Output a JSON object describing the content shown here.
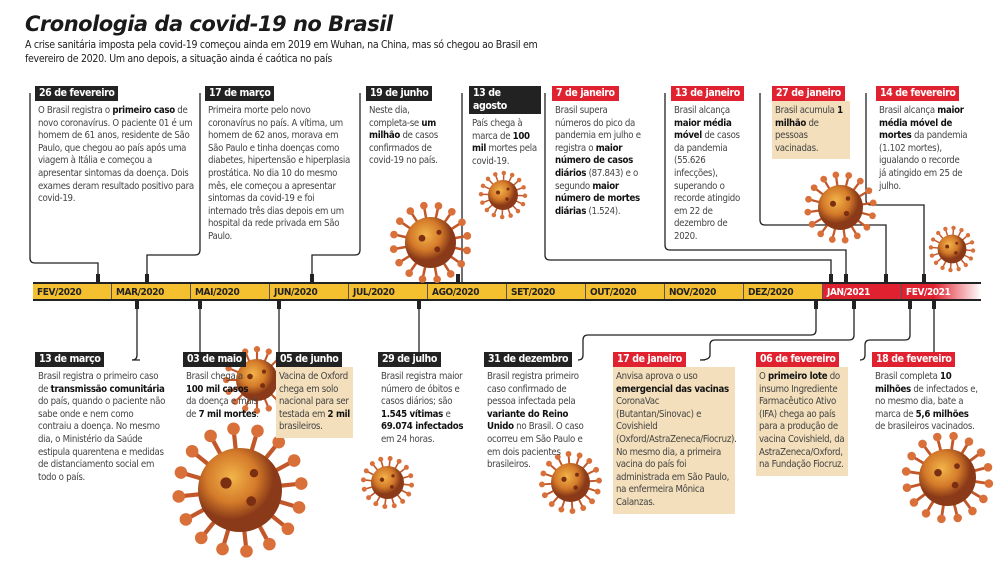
{
  "title": "Cronologia da covid-19 no Brasil",
  "subtitle": "A crise sanitária imposta pela covid-19 começou ainda em 2019 em Wuhan, na China, mas só chegou ao Brasil em fevereiro de 2020. Um ano depois, a situação ainda é caótica no país",
  "colors": {
    "timeline_2020": "#f5c02f",
    "timeline_2021": "#e0212f",
    "label_dark": "#222222",
    "highlight_box": "#f3dfbb"
  },
  "months": [
    "FEV/2020",
    "MAR/2020",
    "MAI/2020",
    "JUN/2020",
    "JUL/2020",
    "AGO/2020",
    "SET/2020",
    "OUT/2020",
    "NOV/2020",
    "DEZ/2020",
    "JAN/2021",
    "FEV/2021"
  ],
  "events_top": [
    {
      "date": "26 de fevereiro",
      "style": "dark",
      "segments": [
        [
          "O Brasil registra o ",
          0
        ],
        [
          "primeiro caso",
          1
        ],
        [
          " de novo coronavírus. O paciente 01 é um homem de 61 anos, residente de São Paulo, que chegou ao país após uma viagem à Itália e começou a apresentar sintomas da doença. Dois exames deram resultado positivo para covid-19.",
          0
        ]
      ]
    },
    {
      "date": "17 de março",
      "style": "dark",
      "segments": [
        [
          "Primeira morte pelo novo coronavírus no país. A vítima, um homem de 62 anos, morava em São Paulo e tinha doenças como diabetes, hipertensão e hiperplasia prostática. No dia 10 do mesmo mês, ele começou a apresentar sintomas da covid-19 e foi internado três dias depois em um hospital da rede privada em São Paulo.",
          0
        ]
      ]
    },
    {
      "date": "19 de junho",
      "style": "dark",
      "segments": [
        [
          "Neste dia, completa-se ",
          0
        ],
        [
          "um milhão",
          1
        ],
        [
          " de casos confirmados de covid-19 no país.",
          0
        ]
      ]
    },
    {
      "date": "13 de agosto",
      "style": "dark",
      "segments": [
        [
          "País chega à marca de ",
          0
        ],
        [
          "100 mil",
          1
        ],
        [
          " mortes pela covid-19.",
          0
        ]
      ]
    },
    {
      "date": "7 de janeiro",
      "style": "red",
      "segments": [
        [
          "Brasil supera números do pico da pandemia em julho e registra o ",
          0
        ],
        [
          "maior número de casos diários",
          1
        ],
        [
          " (87.843) e o segundo ",
          0
        ],
        [
          "maior número de mortes diárias",
          1
        ],
        [
          " (1.524).",
          0
        ]
      ]
    },
    {
      "date": "13 de janeiro",
      "style": "red",
      "segments": [
        [
          "Brasil alcança ",
          0
        ],
        [
          "maior média móvel",
          1
        ],
        [
          " de casos da pandemia (55.626 infecções), superando o recorde atingido em 22 de dezembro de 2020.",
          0
        ]
      ]
    },
    {
      "date": "27 de janeiro",
      "style": "red beige",
      "segments": [
        [
          "Brasil acumula ",
          0
        ],
        [
          "1 milhão",
          1
        ],
        [
          " de pessoas vacinadas.",
          0
        ]
      ]
    },
    {
      "date": "14 de fevereiro",
      "style": "red",
      "segments": [
        [
          "Brasil alcança ",
          0
        ],
        [
          "maior média móvel de mortes",
          1
        ],
        [
          " da pandemia (1.102 mortes), igualando o recorde já atingido em 25 de julho.",
          0
        ]
      ]
    }
  ],
  "events_bottom": [
    {
      "date": "13 de março",
      "style": "dark",
      "segments": [
        [
          "Brasil registra o primeiro caso de ",
          0
        ],
        [
          "transmissão comunitária",
          1
        ],
        [
          " do país, quando o paciente não sabe onde e nem como contraiu a doença. No mesmo dia, o Ministério da Saúde estipula quarentena e medidas de distanciamento social em todo o país.",
          0
        ]
      ]
    },
    {
      "date": "03 de maio",
      "style": "dark",
      "segments": [
        [
          "Brasil chega a ",
          0
        ],
        [
          "100 mil casos",
          1
        ],
        [
          " da doença e mais de ",
          0
        ],
        [
          "7 mil mortes",
          1
        ],
        [
          ".",
          0
        ]
      ]
    },
    {
      "date": "05 de junho",
      "style": "dark beige",
      "segments": [
        [
          "Vacina de Oxford chega em solo nacional para ser testada em ",
          0
        ],
        [
          "2 mil",
          1
        ],
        [
          " brasileiros.",
          0
        ]
      ]
    },
    {
      "date": "29 de julho",
      "style": "dark",
      "segments": [
        [
          "Brasil registra maior número de óbitos e casos diários; são ",
          0
        ],
        [
          "1.545 vítimas",
          1
        ],
        [
          " e ",
          0
        ],
        [
          "69.074 infectados",
          1
        ],
        [
          " em 24 horas.",
          0
        ]
      ]
    },
    {
      "date": "31 de dezembro",
      "style": "dark",
      "segments": [
        [
          "Brasil registra primeiro caso confirmado de pessoa infectada pela ",
          0
        ],
        [
          "variante do Reino Unido",
          1
        ],
        [
          " no Brasil. O caso ocorreu em São Paulo e em dois pacientes brasileiros.",
          0
        ]
      ]
    },
    {
      "date": "17 de janeiro",
      "style": "red beige",
      "segments": [
        [
          "Anvisa aprova o uso ",
          0
        ],
        [
          "emergencial das vacinas",
          1
        ],
        [
          " CoronaVac (Butantan/Sinovac) e Covishield (Oxford/AstraZeneca/Fiocruz). No mesmo dia, a primeira vacina do país foi administrada em São Paulo, na enfermeira Mônica Calanzas.",
          0
        ]
      ]
    },
    {
      "date": "06 de fevereiro",
      "style": "red beige",
      "segments": [
        [
          "O ",
          0
        ],
        [
          "primeiro lote",
          1
        ],
        [
          " do insumo Ingrediente Farmacêutico Ativo (IFA) chega ao país para a produção de vacina Covishield, da AstraZeneca/Oxford, na Fundação Fiocruz.",
          0
        ]
      ]
    },
    {
      "date": "18 de fevereiro",
      "style": "red",
      "segments": [
        [
          "Brasil completa ",
          0
        ],
        [
          "10 milhões",
          1
        ],
        [
          " de infectados e, no mesmo dia, bate a marca de ",
          0
        ],
        [
          "5,6 milhões",
          1
        ],
        [
          " de brasileiros vacinados.",
          0
        ]
      ]
    }
  ]
}
